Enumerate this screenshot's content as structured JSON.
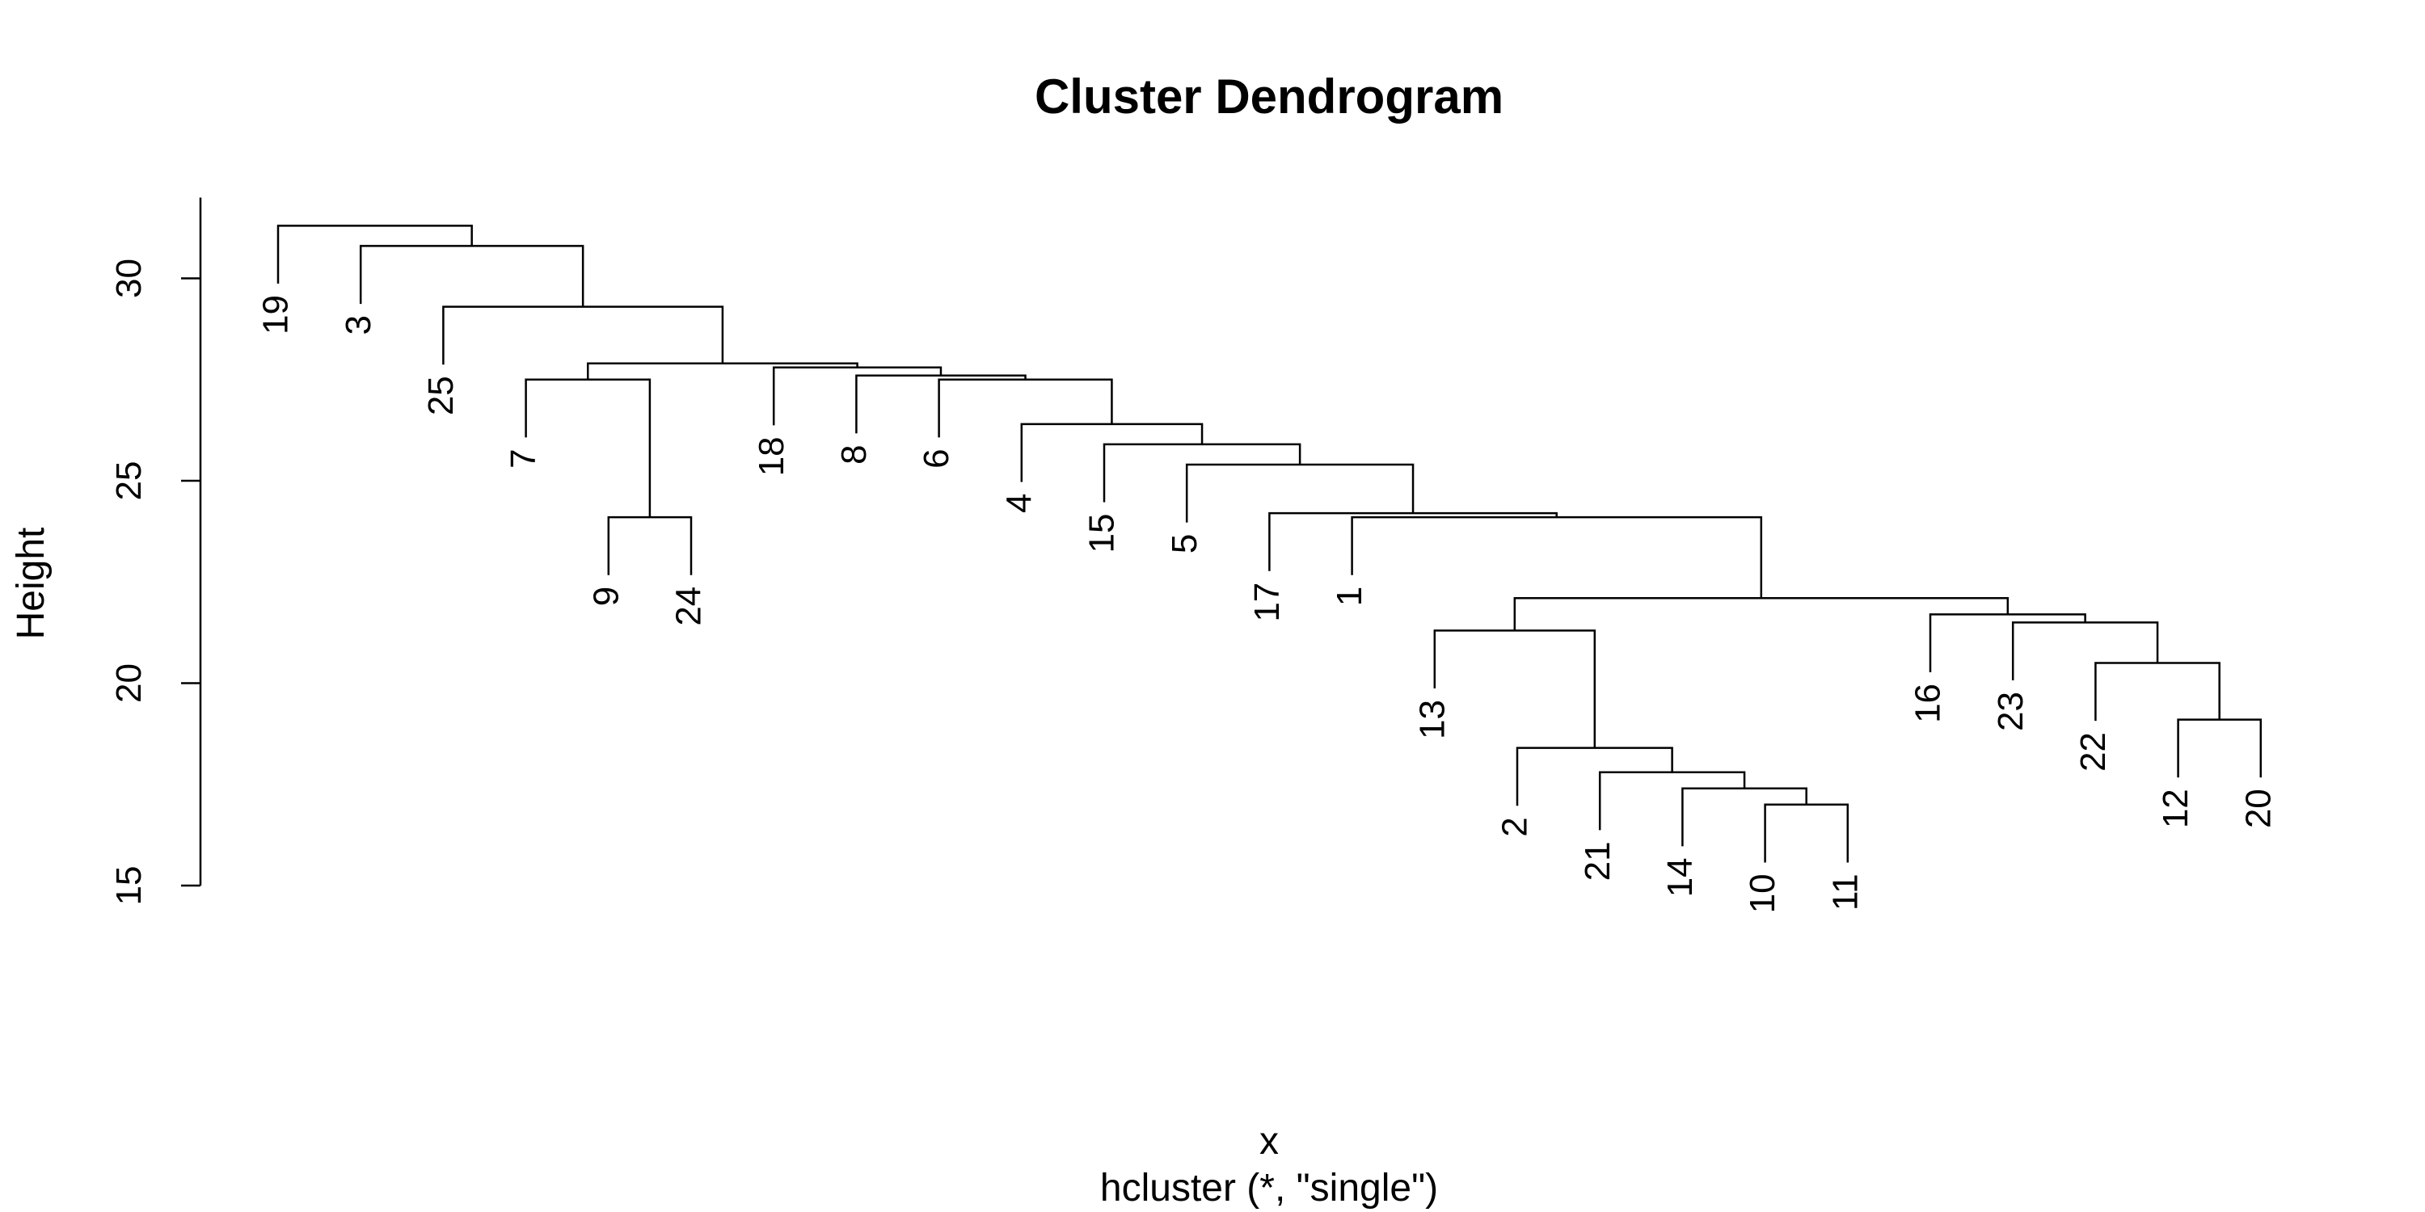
{
  "chart_data": {
    "type": "dendrogram",
    "title": "Cluster Dendrogram",
    "xlabel": "x",
    "sublabel": "hcluster (*, \"single\")",
    "ylabel": "Height",
    "yticks": [
      15,
      20,
      25,
      30
    ],
    "ylim": [
      15,
      32
    ],
    "leaf_order": [
      "19",
      "3",
      "25",
      "7",
      "9",
      "24",
      "18",
      "8",
      "6",
      "4",
      "15",
      "5",
      "17",
      "1",
      "13",
      "2",
      "21",
      "14",
      "10",
      "11",
      "16",
      "23",
      "22",
      "12",
      "20"
    ],
    "merges": [
      {
        "a": "10",
        "b": "11",
        "height": 17.0
      },
      {
        "a": "14",
        "b": "m1",
        "height": 17.4
      },
      {
        "a": "21",
        "b": "m2",
        "height": 17.8
      },
      {
        "a": "2",
        "b": "m3",
        "height": 18.4
      },
      {
        "a": "12",
        "b": "20",
        "height": 19.1
      },
      {
        "a": "22",
        "b": "m5",
        "height": 20.5
      },
      {
        "a": "13",
        "b": "m4",
        "height": 21.3
      },
      {
        "a": "23",
        "b": "m6",
        "height": 21.5
      },
      {
        "a": "16",
        "b": "m8",
        "height": 21.7
      },
      {
        "a": "m7",
        "b": "m9",
        "height": 22.1
      },
      {
        "a": "9",
        "b": "24",
        "height": 24.1
      },
      {
        "a": "1",
        "b": "m10",
        "height": 24.1
      },
      {
        "a": "17",
        "b": "m12",
        "height": 24.2
      },
      {
        "a": "5",
        "b": "m13",
        "height": 25.4
      },
      {
        "a": "15",
        "b": "m14",
        "height": 25.9
      },
      {
        "a": "4",
        "b": "m15",
        "height": 26.4
      },
      {
        "a": "7",
        "b": "m11",
        "height": 27.5
      },
      {
        "a": "6",
        "b": "m16",
        "height": 27.5
      },
      {
        "a": "8",
        "b": "m18",
        "height": 27.6
      },
      {
        "a": "18",
        "b": "m19",
        "height": 27.8
      },
      {
        "a": "m17",
        "b": "m20",
        "height": 27.9
      },
      {
        "a": "25",
        "b": "m21",
        "height": 29.3
      },
      {
        "a": "3",
        "b": "m22",
        "height": 30.8
      },
      {
        "a": "19",
        "b": "m23",
        "height": 31.3
      }
    ]
  }
}
